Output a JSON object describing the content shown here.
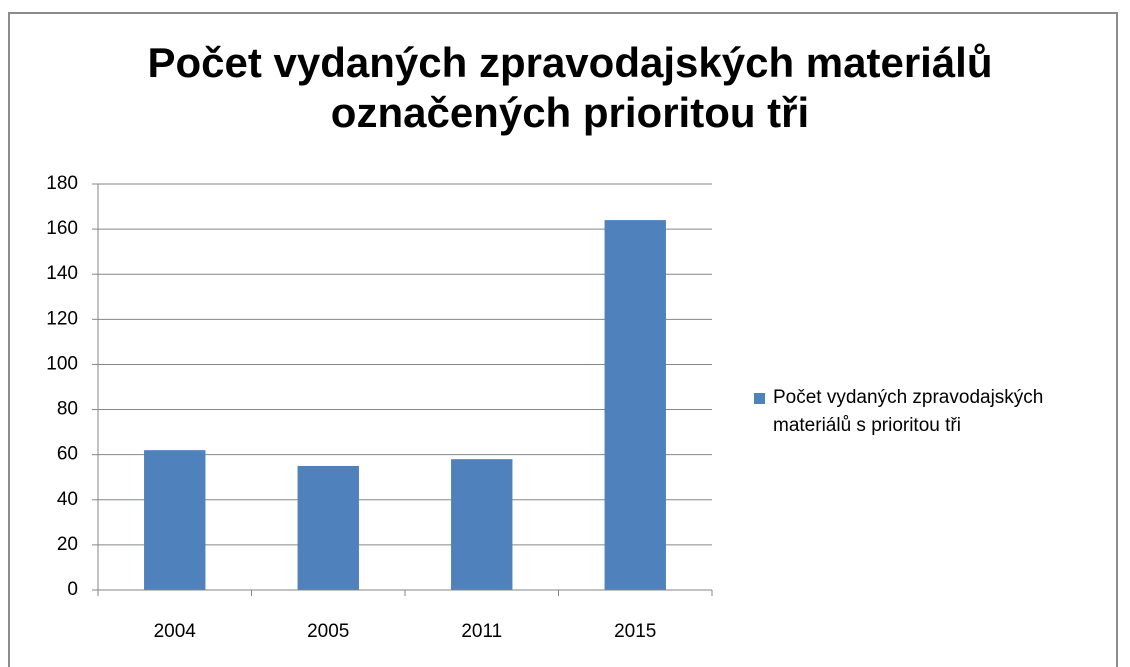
{
  "chart_data": {
    "type": "bar",
    "title": "Počet vydaných zpravodajských materiálů označených prioritou tři",
    "categories": [
      "2004",
      "2005",
      "2011",
      "2015"
    ],
    "series": [
      {
        "name": "Počet vydaných zpravodajských materiálů s prioritou tři",
        "color": "#4f81bd",
        "values": [
          62,
          55,
          58,
          164
        ]
      }
    ],
    "ylim": [
      0,
      180
    ],
    "yticks": [
      0,
      20,
      40,
      60,
      80,
      100,
      120,
      140,
      160,
      180
    ],
    "grid": true,
    "legend": "right"
  }
}
